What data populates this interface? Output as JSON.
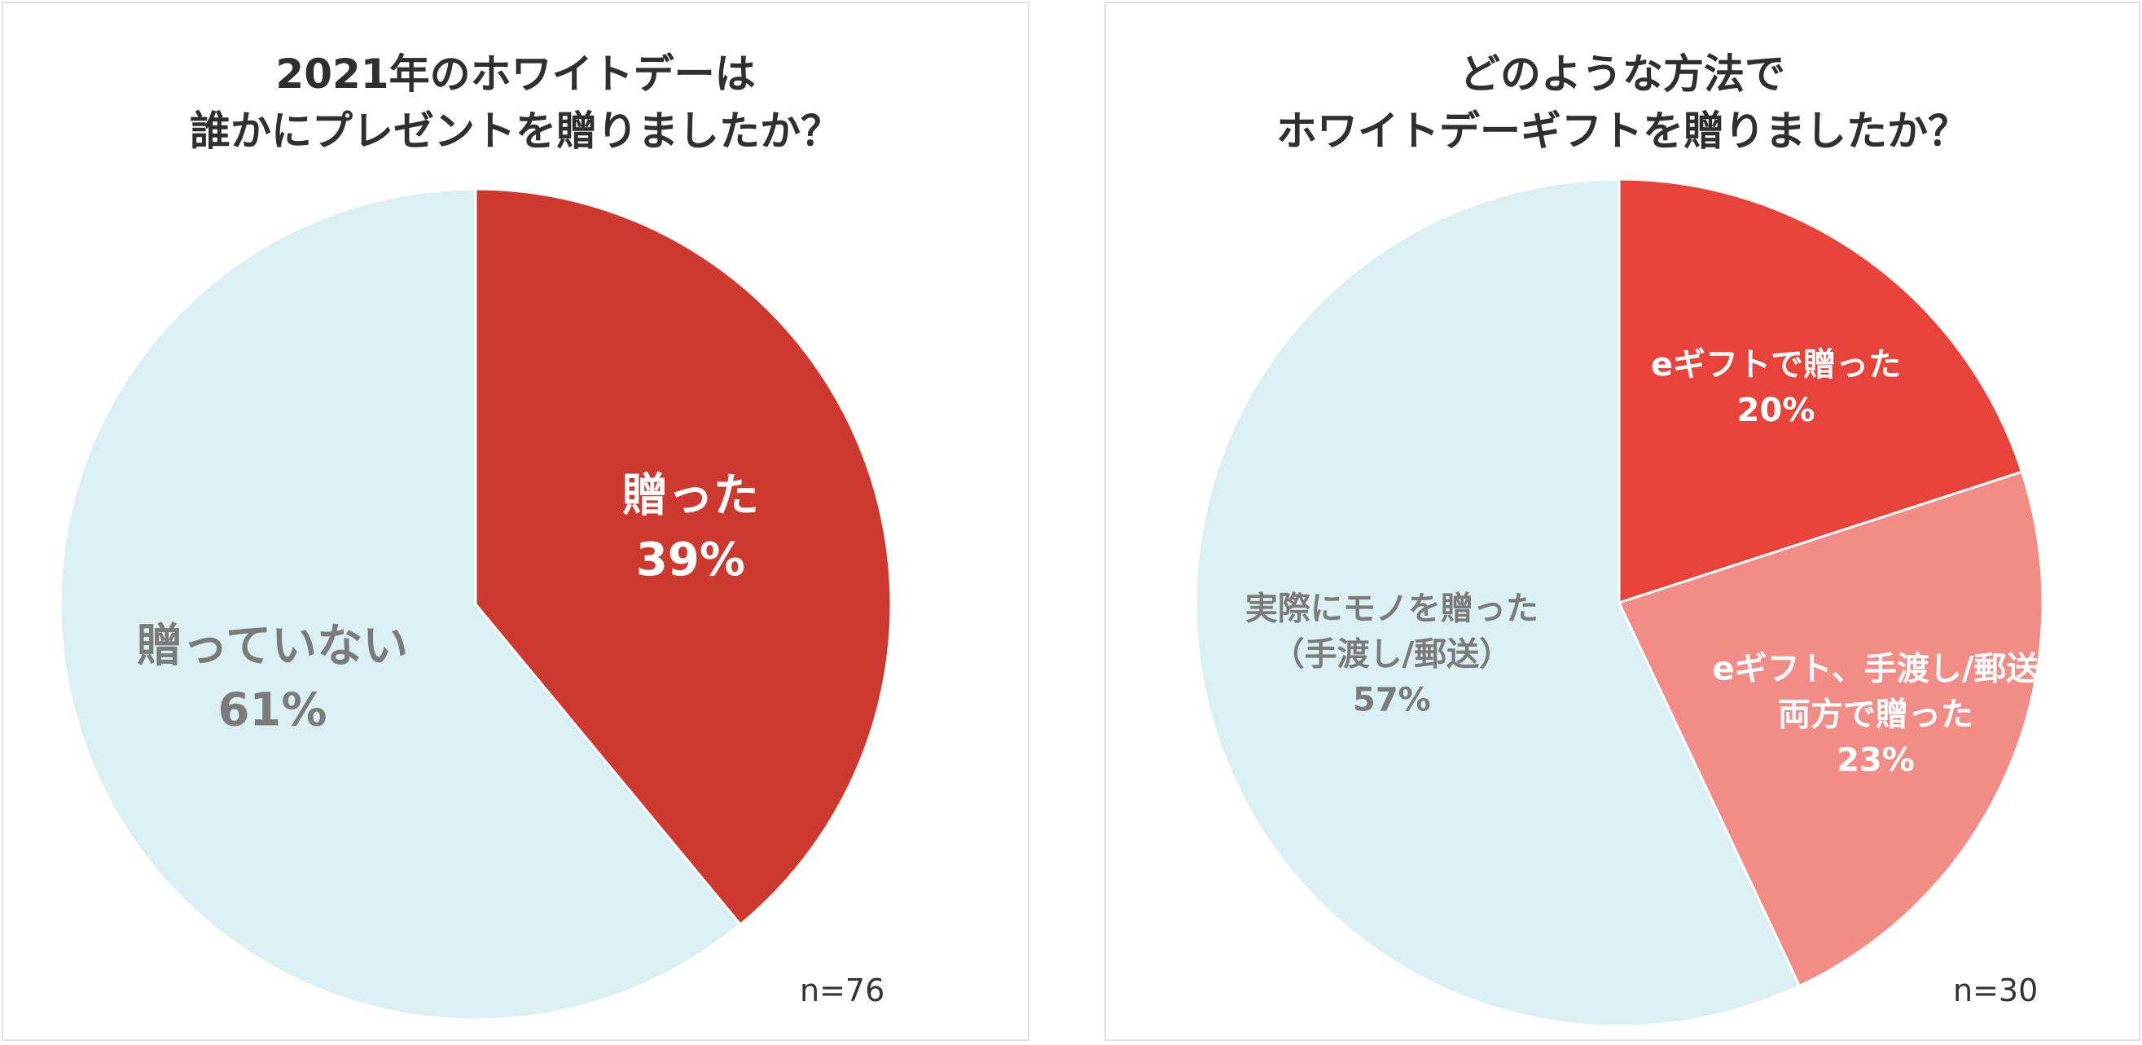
{
  "chart_data": [
    {
      "type": "pie",
      "title": [
        "2021年のホワイトデーは",
        "誰かにプレゼントを贈りましたか？"
      ],
      "note": "n=76",
      "slices": [
        {
          "label": "贈った",
          "value": 39,
          "pct": "39%",
          "color": "#cd392e",
          "text_color": "#ffffff"
        },
        {
          "label": "贈っていない",
          "value": 61,
          "pct": "61%",
          "color": "#dbf0f3",
          "text_color": "#7b7b7b"
        }
      ]
    },
    {
      "type": "pie",
      "title": [
        "どのような方法で",
        "ホワイトデーギフトを贈りましたか？"
      ],
      "note": "n=30",
      "slices": [
        {
          "label": "eギフトで贈った",
          "value": 20,
          "pct": "20%",
          "color": "#e8433a",
          "text_color": "#ffffff"
        },
        {
          "label": "eギフト、手渡し/郵送\n両方で贈った",
          "value": 23,
          "pct": "23%",
          "color": "#f28c86",
          "text_color": "#ffffff"
        },
        {
          "label": "実際にモノを贈った\n（手渡し/郵送）",
          "value": 57,
          "pct": "57%",
          "color": "#dbf0f3",
          "text_color": "#7b7b7b"
        }
      ]
    }
  ]
}
